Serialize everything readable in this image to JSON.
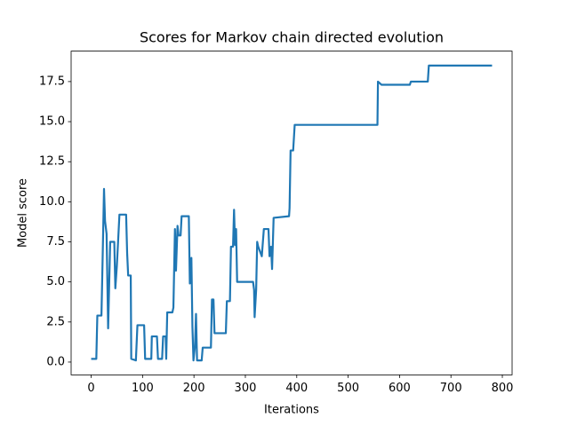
{
  "chart_data": {
    "type": "line",
    "title": "Scores for Markov chain directed evolution",
    "x_label": "Iterations",
    "y_label": "Model score",
    "color": "#1f77b4",
    "x": [
      0,
      10,
      12,
      20,
      22,
      25,
      27,
      30,
      33,
      37,
      45,
      47,
      50,
      55,
      68,
      70,
      72,
      77,
      78,
      87,
      90,
      103,
      105,
      117,
      118,
      128,
      130,
      138,
      140,
      145,
      146,
      148,
      158,
      160,
      163,
      165,
      168,
      170,
      174,
      176,
      190,
      192,
      195,
      197,
      199,
      202,
      204,
      206,
      215,
      217,
      233,
      235,
      238,
      240,
      262,
      264,
      270,
      272,
      276,
      278,
      280,
      282,
      284,
      315,
      317,
      318,
      321,
      323,
      325,
      332,
      336,
      345,
      347,
      350,
      352,
      355,
      385,
      386,
      388,
      393,
      396,
      557,
      558,
      565,
      620,
      622,
      655,
      657,
      780
    ],
    "values": [
      0.2,
      0.2,
      2.9,
      2.9,
      6.0,
      10.8,
      8.8,
      8.0,
      2.1,
      7.5,
      7.5,
      4.6,
      6.0,
      9.2,
      9.2,
      6.8,
      5.4,
      5.4,
      0.2,
      0.1,
      2.3,
      2.3,
      0.2,
      0.2,
      1.6,
      1.6,
      0.2,
      0.2,
      1.6,
      1.6,
      0.2,
      3.1,
      3.1,
      3.4,
      8.3,
      5.7,
      8.5,
      7.9,
      7.9,
      9.1,
      9.1,
      4.9,
      6.5,
      2.2,
      0.1,
      1.0,
      3.0,
      0.1,
      0.1,
      0.9,
      0.9,
      3.9,
      3.9,
      1.8,
      1.8,
      3.8,
      3.8,
      7.2,
      7.2,
      9.5,
      7.3,
      8.3,
      5.0,
      5.0,
      4.5,
      2.8,
      4.5,
      7.5,
      7.2,
      6.6,
      8.3,
      8.3,
      6.6,
      7.2,
      5.8,
      9.0,
      9.1,
      9.6,
      13.2,
      13.2,
      14.8,
      14.8,
      17.5,
      17.3,
      17.3,
      17.5,
      17.5,
      18.5,
      18.5
    ],
    "xlim": [
      -39,
      819
    ],
    "ylim": [
      -0.8,
      19.4
    ],
    "xticks": [
      0,
      100,
      200,
      300,
      400,
      500,
      600,
      700,
      800
    ],
    "yticks": [
      {
        "value": 0,
        "label": "0.0"
      },
      {
        "value": 2.5,
        "label": "2.5"
      },
      {
        "value": 5,
        "label": "5.0"
      },
      {
        "value": 7.5,
        "label": "7.5"
      },
      {
        "value": 10,
        "label": "10.0"
      },
      {
        "value": 12.5,
        "label": "12.5"
      },
      {
        "value": 15,
        "label": "15.0"
      },
      {
        "value": 17.5,
        "label": "17.5"
      }
    ]
  }
}
